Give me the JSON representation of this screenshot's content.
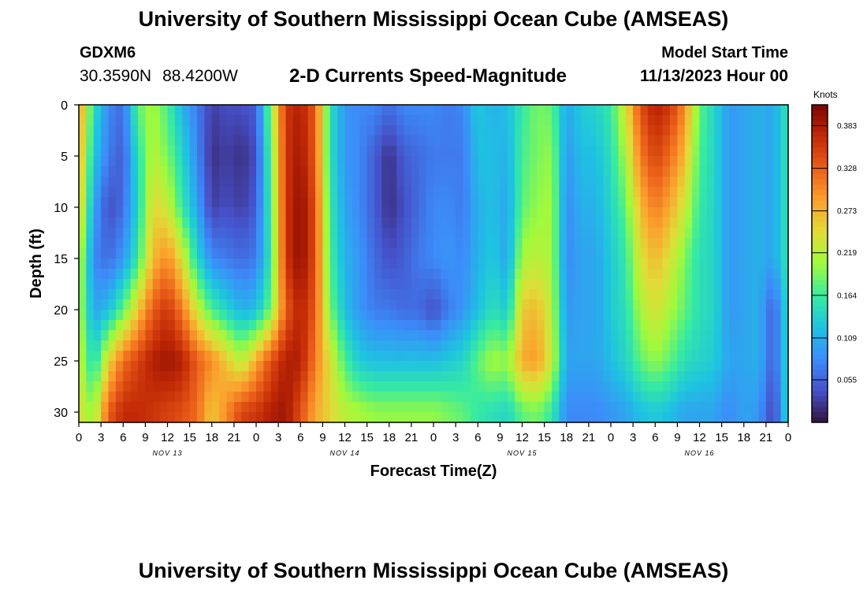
{
  "header": {
    "title": "University of Southern Mississippi Ocean Cube (AMSEAS)",
    "station": "GDXM6",
    "lat": "30.3590N",
    "lon": "88.4200W",
    "subtitle": "2-D Currents Speed-Magnitude",
    "model_start_label": "Model Start Time",
    "model_start_value": "11/13/2023 Hour 00"
  },
  "footer": {
    "title": "University of Southern Mississippi Ocean Cube (AMSEAS)"
  },
  "chart_data": {
    "type": "heatmap",
    "title": "2-D Currents Speed-Magnitude",
    "xlabel": "Forecast Time(Z)",
    "ylabel": "Depth (ft)",
    "xlim": [
      0,
      96
    ],
    "ylim": [
      31,
      0
    ],
    "y_inverted": true,
    "x_tick_labels": [
      "0",
      "3",
      "6",
      "9",
      "12",
      "15",
      "18",
      "21",
      "0",
      "3",
      "6",
      "9",
      "12",
      "15",
      "18",
      "21",
      "0",
      "3",
      "6",
      "9",
      "12",
      "15",
      "18",
      "21",
      "0",
      "3",
      "6",
      "9",
      "12",
      "15",
      "18",
      "21",
      "0"
    ],
    "y_ticks": [
      0,
      5,
      10,
      15,
      20,
      25,
      30
    ],
    "date_labels": [
      {
        "label": "NOV 13",
        "hour": 12
      },
      {
        "label": "NOV 14",
        "hour": 36
      },
      {
        "label": "NOV 15",
        "hour": 60
      },
      {
        "label": "NOV 16",
        "hour": 84
      }
    ],
    "colorbar": {
      "label": "Knots",
      "min": 0.0,
      "max": 0.41,
      "ticks": [
        0.055,
        0.109,
        0.164,
        0.219,
        0.273,
        0.328,
        0.383
      ],
      "colormap": "turbo"
    },
    "depths_ft": [
      0,
      5,
      10,
      15,
      20,
      25,
      30
    ],
    "hours": [
      0,
      2,
      4,
      6,
      8,
      10,
      12,
      14,
      16,
      18,
      20,
      22,
      24,
      26,
      28,
      30,
      32,
      34,
      36,
      38,
      40,
      42,
      44,
      46,
      48,
      50,
      52,
      54,
      56,
      58,
      60,
      62,
      64,
      66,
      68,
      70,
      72,
      74,
      76,
      78,
      80,
      82,
      84,
      86,
      88,
      90,
      92,
      94,
      96
    ],
    "speed_knots": [
      [
        0.3,
        0.15,
        0.08,
        0.06,
        0.18,
        0.21,
        0.17,
        0.11,
        0.07,
        0.03,
        0.04,
        0.04,
        0.05,
        0.2,
        0.36,
        0.38,
        0.33,
        0.15,
        0.09,
        0.08,
        0.08,
        0.06,
        0.08,
        0.08,
        0.08,
        0.07,
        0.08,
        0.13,
        0.11,
        0.12,
        0.16,
        0.19,
        0.18,
        0.1,
        0.13,
        0.14,
        0.16,
        0.24,
        0.34,
        0.38,
        0.36,
        0.3,
        0.18,
        0.14,
        0.09,
        0.1,
        0.11,
        0.1,
        0.16
      ],
      [
        0.29,
        0.13,
        0.07,
        0.05,
        0.15,
        0.22,
        0.19,
        0.14,
        0.08,
        0.02,
        0.03,
        0.02,
        0.04,
        0.18,
        0.36,
        0.39,
        0.33,
        0.15,
        0.09,
        0.08,
        0.05,
        0.02,
        0.05,
        0.06,
        0.07,
        0.07,
        0.07,
        0.12,
        0.12,
        0.11,
        0.17,
        0.19,
        0.2,
        0.09,
        0.12,
        0.12,
        0.15,
        0.21,
        0.31,
        0.35,
        0.32,
        0.27,
        0.17,
        0.14,
        0.09,
        0.1,
        0.11,
        0.1,
        0.16
      ],
      [
        0.27,
        0.1,
        0.04,
        0.06,
        0.14,
        0.25,
        0.23,
        0.16,
        0.1,
        0.03,
        0.04,
        0.03,
        0.05,
        0.17,
        0.36,
        0.4,
        0.34,
        0.16,
        0.1,
        0.08,
        0.05,
        0.02,
        0.04,
        0.06,
        0.08,
        0.08,
        0.07,
        0.11,
        0.12,
        0.1,
        0.18,
        0.2,
        0.21,
        0.08,
        0.11,
        0.11,
        0.14,
        0.18,
        0.27,
        0.31,
        0.28,
        0.23,
        0.16,
        0.14,
        0.09,
        0.1,
        0.11,
        0.1,
        0.16
      ],
      [
        0.23,
        0.08,
        0.06,
        0.09,
        0.16,
        0.27,
        0.3,
        0.24,
        0.14,
        0.08,
        0.07,
        0.06,
        0.07,
        0.16,
        0.36,
        0.4,
        0.34,
        0.17,
        0.11,
        0.09,
        0.06,
        0.04,
        0.05,
        0.07,
        0.08,
        0.09,
        0.08,
        0.11,
        0.13,
        0.1,
        0.21,
        0.22,
        0.21,
        0.08,
        0.1,
        0.1,
        0.13,
        0.16,
        0.24,
        0.27,
        0.24,
        0.19,
        0.15,
        0.14,
        0.09,
        0.1,
        0.11,
        0.1,
        0.16
      ],
      [
        0.22,
        0.1,
        0.12,
        0.18,
        0.26,
        0.33,
        0.36,
        0.31,
        0.23,
        0.17,
        0.14,
        0.11,
        0.12,
        0.19,
        0.33,
        0.38,
        0.33,
        0.19,
        0.12,
        0.09,
        0.07,
        0.07,
        0.06,
        0.06,
        0.04,
        0.07,
        0.09,
        0.12,
        0.15,
        0.13,
        0.26,
        0.27,
        0.22,
        0.09,
        0.1,
        0.1,
        0.13,
        0.15,
        0.21,
        0.24,
        0.21,
        0.18,
        0.15,
        0.14,
        0.09,
        0.1,
        0.11,
        0.05,
        0.15
      ],
      [
        0.23,
        0.14,
        0.25,
        0.32,
        0.35,
        0.38,
        0.39,
        0.38,
        0.33,
        0.3,
        0.26,
        0.22,
        0.28,
        0.34,
        0.38,
        0.38,
        0.31,
        0.24,
        0.17,
        0.13,
        0.12,
        0.12,
        0.12,
        0.12,
        0.12,
        0.13,
        0.14,
        0.18,
        0.21,
        0.2,
        0.28,
        0.29,
        0.23,
        0.1,
        0.1,
        0.1,
        0.12,
        0.14,
        0.18,
        0.2,
        0.18,
        0.15,
        0.14,
        0.13,
        0.1,
        0.1,
        0.11,
        0.05,
        0.15
      ],
      [
        0.24,
        0.2,
        0.33,
        0.37,
        0.37,
        0.36,
        0.35,
        0.34,
        0.32,
        0.26,
        0.3,
        0.35,
        0.36,
        0.38,
        0.39,
        0.34,
        0.28,
        0.25,
        0.22,
        0.21,
        0.2,
        0.2,
        0.2,
        0.2,
        0.2,
        0.19,
        0.18,
        0.16,
        0.15,
        0.14,
        0.18,
        0.19,
        0.16,
        0.08,
        0.08,
        0.08,
        0.09,
        0.1,
        0.12,
        0.13,
        0.12,
        0.1,
        0.1,
        0.1,
        0.08,
        0.1,
        0.09,
        0.03,
        0.15
      ]
    ]
  }
}
